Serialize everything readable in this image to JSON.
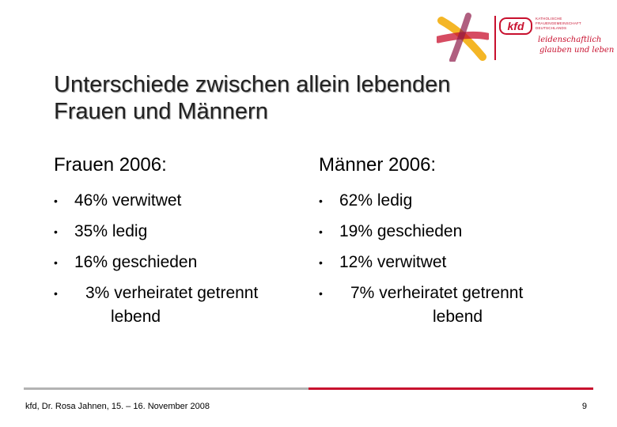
{
  "logo": {
    "badge": "kfd",
    "org_lines": [
      "KATHOLISCHE",
      "FRAUENGEMEINSCHAFT",
      "DEUTSCHLANDS"
    ],
    "claim_lines": [
      "leidenschaftlich",
      "glauben und leben"
    ],
    "brand_color": "#c8102e",
    "accent_colors": [
      "#f2a900",
      "#8e1b4a",
      "#c8102e"
    ]
  },
  "title_lines": [
    "Unterschiede zwischen allein lebenden",
    "Frauen und Männern"
  ],
  "left": {
    "heading": "Frauen 2006:",
    "items": [
      {
        "pct": "46%",
        "label": "verwitwet"
      },
      {
        "pct": "35%",
        "label": "ledig"
      },
      {
        "pct": "16%",
        "label": "geschieden"
      },
      {
        "pct": "3%",
        "label": "verheiratet getrennt",
        "cont": "lebend"
      }
    ]
  },
  "right": {
    "heading": "Männer 2006:",
    "items": [
      {
        "pct": "62%",
        "label": "ledig"
      },
      {
        "pct": "19%",
        "label": "geschieden"
      },
      {
        "pct": "12%",
        "label": "verwitwet"
      },
      {
        "pct": "7%",
        "label": "verheiratet getrennt",
        "cont": "lebend"
      }
    ]
  },
  "bullet": "•",
  "footer": {
    "text": "kfd, Dr. Rosa Jahnen, 15. – 16. November 2008",
    "page": "9"
  }
}
